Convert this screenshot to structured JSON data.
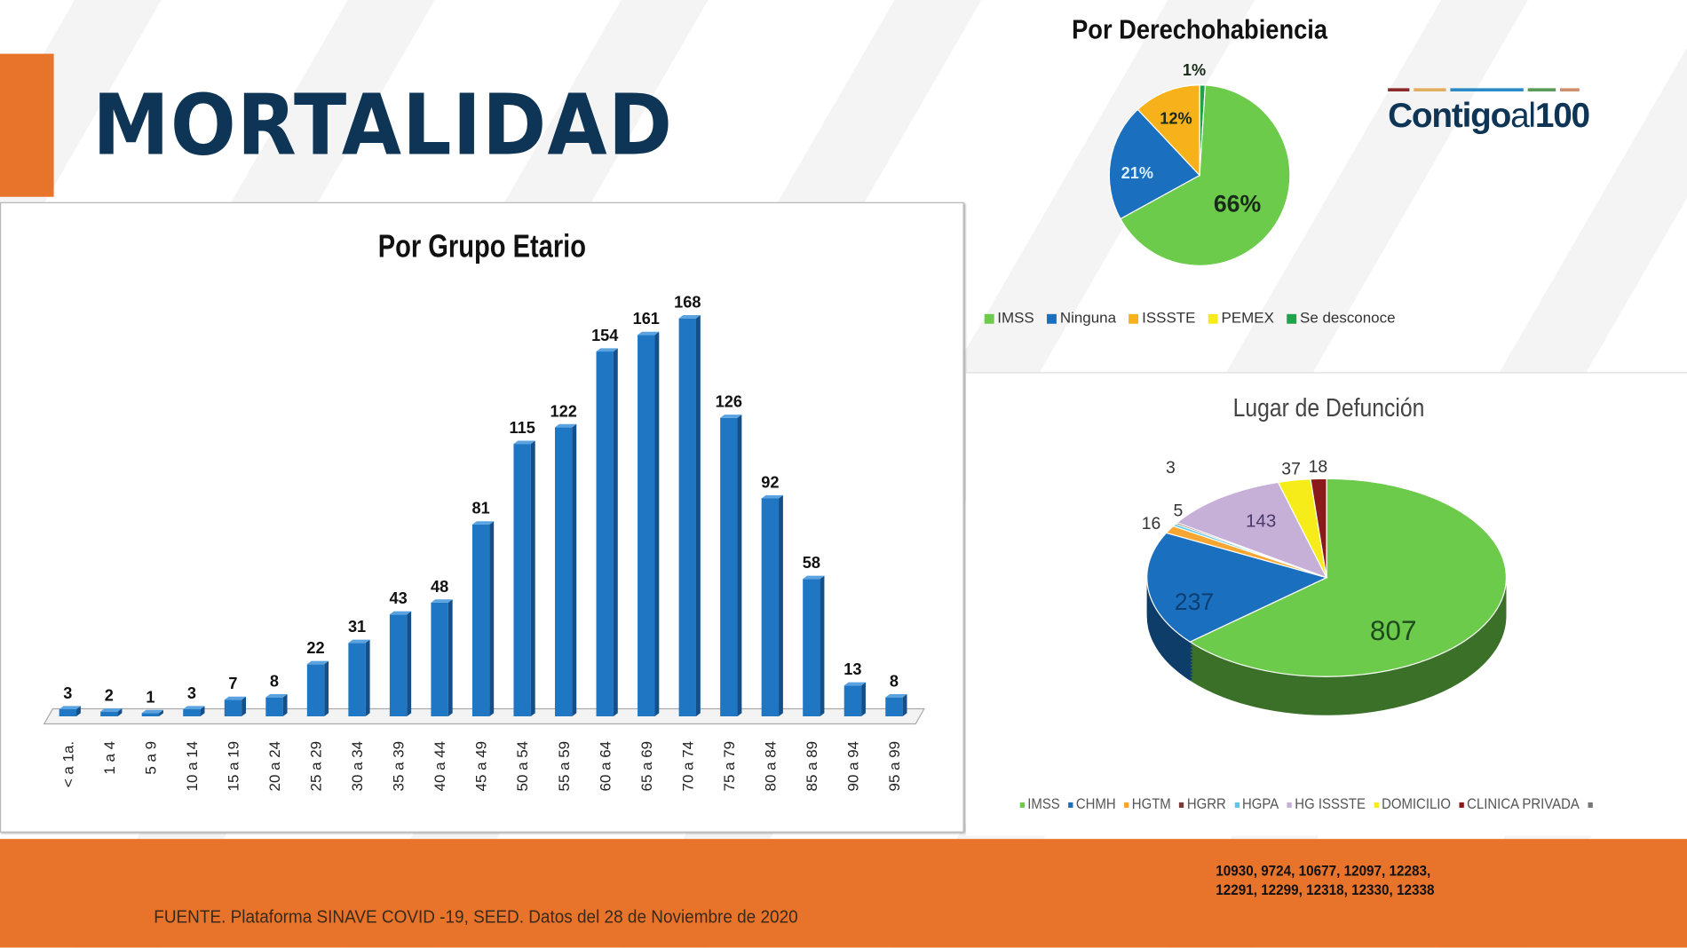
{
  "header": {
    "title": "MORTALIDAD",
    "logo_text": "Contigo",
    "logo_al": "al",
    "logo_num": "100"
  },
  "footer": {
    "source": "FUENTE. Plataforma SINAVE COVID -19, SEED. Datos del 28 de Noviembre de 2020",
    "codes_line1": "10930, 9724, 10677, 12097, 12283,",
    "codes_line2": "12291, 12299, 12318, 12330, 12338"
  },
  "chart_data": [
    {
      "type": "bar",
      "title": "Por Grupo Etario",
      "xlabel": "",
      "ylabel": "",
      "categories": [
        "< a 1a.",
        "1 a 4",
        "5 a 9",
        "10 a 14",
        "15 a 19",
        "20 a 24",
        "25 a 29",
        "30 a 34",
        "35 a 39",
        "40 a 44",
        "45 a 49",
        "50 a 54",
        "55 a 59",
        "60 a 64",
        "65 a 69",
        "70 a 74",
        "75 a 79",
        "80 a 84",
        "85 a 89",
        "90 a 94",
        "95 a 99"
      ],
      "values": [
        3,
        2,
        1,
        3,
        7,
        8,
        22,
        31,
        43,
        48,
        81,
        115,
        122,
        154,
        161,
        168,
        126,
        92,
        58,
        13,
        8
      ],
      "ylim": [
        0,
        170
      ],
      "color": "#1f77c4"
    },
    {
      "type": "pie",
      "title": "Por Derechohabiencia",
      "legend_position": "bottom",
      "slices": [
        {
          "label": "Se desconoce",
          "value": 1,
          "display": "1%",
          "color": "#1fa34a"
        },
        {
          "label": "IMSS",
          "value": 66,
          "display": "66%",
          "color": "#6ccb4a"
        },
        {
          "label": "Ninguna",
          "value": 21,
          "display": "21%",
          "color": "#1a6fbf"
        },
        {
          "label": "ISSSTE",
          "value": 12,
          "display": "12%",
          "color": "#f7b21b"
        },
        {
          "label": "PEMEX",
          "value": 0,
          "display": "",
          "color": "#f5ec1a"
        }
      ],
      "legend": [
        "IMSS",
        "Ninguna",
        "ISSSTE",
        "PEMEX",
        "Se desconoce"
      ]
    },
    {
      "type": "pie",
      "title": "Lugar de Defunción",
      "legend_position": "bottom",
      "style": "3d",
      "slices": [
        {
          "label": "IMSS",
          "value": 807,
          "color": "#6ccb4a"
        },
        {
          "label": "CHMH",
          "value": 237,
          "color": "#1a6fbf"
        },
        {
          "label": "HGTM",
          "value": 16,
          "color": "#f7a631"
        },
        {
          "label": "HGPA",
          "value": 5,
          "color": "#5bc8e8"
        },
        {
          "label": "HGRR",
          "value": 3,
          "color": "#7a3b3b"
        },
        {
          "label": "HG ISSSTE",
          "value": 143,
          "color": "#c6b0d8"
        },
        {
          "label": "DOMICILIO",
          "value": 37,
          "color": "#f5ec1a"
        },
        {
          "label": "CLINICA PRIVADA",
          "value": 18,
          "color": "#8b1a1a"
        }
      ],
      "legend": [
        "IMSS",
        "CHMH",
        "HGTM",
        "HGRR",
        "HGPA",
        "HG ISSSTE",
        "DOMICILIO",
        "CLINICA PRIVADA",
        ""
      ],
      "legend_colors": [
        "#6ccb4a",
        "#1a6fbf",
        "#f7a631",
        "#7a3b3b",
        "#5bc8e8",
        "#c6b0d8",
        "#f5ec1a",
        "#8b1a1a",
        "#777777"
      ]
    }
  ]
}
